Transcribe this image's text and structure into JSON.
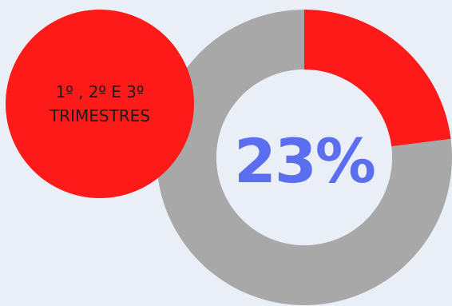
{
  "badge": {
    "line1": "1º , 2º E 3º",
    "line2": "TRIMESTRES"
  },
  "chart_data": {
    "type": "pie",
    "style": "donut",
    "slices": [
      {
        "value": 23,
        "color": "#ff1a1a"
      },
      {
        "value": 77,
        "color": "#a8a8a8"
      }
    ],
    "center_label": "23%",
    "center_label_color": "#5b6ef0"
  },
  "colors": {
    "background": "#eaeff7",
    "accent": "#ff1a1a",
    "ring_remainder": "#a8a8a8",
    "donut_hole": "#eaeff7",
    "percent_text": "#5b6ef0"
  }
}
